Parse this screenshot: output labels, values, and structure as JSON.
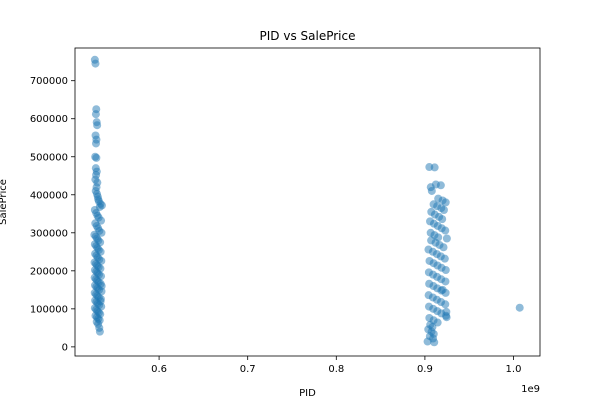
{
  "chart_data": {
    "type": "scatter",
    "title": "PID vs SalePrice",
    "xlabel": "PID",
    "ylabel": "SalePrice",
    "x_offset_label": "1e9",
    "xlim": [
      0.5051,
      1.0299
    ],
    "ylim": [
      -24000,
      786000
    ],
    "xticks": [
      0.6,
      0.7,
      0.8,
      0.9,
      1.0
    ],
    "xtick_labels": [
      "0.6",
      "0.7",
      "0.8",
      "0.9",
      "1.0"
    ],
    "yticks": [
      0,
      100000,
      200000,
      300000,
      400000,
      500000,
      600000,
      700000
    ],
    "ytick_labels": [
      "0",
      "100000",
      "200000",
      "300000",
      "400000",
      "500000",
      "600000",
      "700000"
    ],
    "marker_color": "#1f77b4",
    "marker_alpha": 0.5,
    "grid": false,
    "legend": "none",
    "points": [
      [
        0.5275,
        755000
      ],
      [
        0.5282,
        745000
      ],
      [
        0.5291,
        625000
      ],
      [
        0.5287,
        612000
      ],
      [
        0.5296,
        591000
      ],
      [
        0.5301,
        583000
      ],
      [
        0.5283,
        556000
      ],
      [
        0.5293,
        545000
      ],
      [
        0.5288,
        535000
      ],
      [
        0.5279,
        500000
      ],
      [
        0.5292,
        497000
      ],
      [
        0.5286,
        470000
      ],
      [
        0.5297,
        461000
      ],
      [
        0.5289,
        452000
      ],
      [
        0.5281,
        440000
      ],
      [
        0.5303,
        432000
      ],
      [
        0.5294,
        420000
      ],
      [
        0.5285,
        410000
      ],
      [
        0.5299,
        402000
      ],
      [
        0.5308,
        395000
      ],
      [
        0.5313,
        388000
      ],
      [
        0.5321,
        383000
      ],
      [
        0.5339,
        376000
      ],
      [
        0.5355,
        372000
      ],
      [
        0.5331,
        368000
      ],
      [
        0.5275,
        360000
      ],
      [
        0.529,
        352000
      ],
      [
        0.5305,
        345000
      ],
      [
        0.5318,
        340000
      ],
      [
        0.5345,
        332000
      ],
      [
        0.528,
        325000
      ],
      [
        0.5296,
        318000
      ],
      [
        0.5312,
        312000
      ],
      [
        0.5326,
        305000
      ],
      [
        0.535,
        300000
      ],
      [
        0.527,
        295000
      ],
      [
        0.5285,
        290000
      ],
      [
        0.53,
        285000
      ],
      [
        0.5315,
        280000
      ],
      [
        0.5335,
        275000
      ],
      [
        0.5275,
        270000
      ],
      [
        0.529,
        265000
      ],
      [
        0.5305,
        260000
      ],
      [
        0.532,
        255000
      ],
      [
        0.534,
        250000
      ],
      [
        0.5278,
        245000
      ],
      [
        0.5293,
        240000
      ],
      [
        0.5308,
        235000
      ],
      [
        0.5325,
        230000
      ],
      [
        0.5348,
        226000
      ],
      [
        0.5272,
        222000
      ],
      [
        0.5287,
        218000
      ],
      [
        0.5302,
        214000
      ],
      [
        0.5318,
        210000
      ],
      [
        0.5338,
        206000
      ],
      [
        0.5276,
        202000
      ],
      [
        0.5291,
        198000
      ],
      [
        0.5306,
        194000
      ],
      [
        0.5322,
        190000
      ],
      [
        0.5345,
        186000
      ],
      [
        0.5273,
        182000
      ],
      [
        0.5288,
        178000
      ],
      [
        0.5303,
        174000
      ],
      [
        0.5319,
        170000
      ],
      [
        0.5341,
        166000
      ],
      [
        0.5277,
        162000
      ],
      [
        0.5292,
        158000
      ],
      [
        0.5307,
        154000
      ],
      [
        0.5323,
        150000
      ],
      [
        0.535,
        146000
      ],
      [
        0.5274,
        142000
      ],
      [
        0.5289,
        138000
      ],
      [
        0.5304,
        134000
      ],
      [
        0.532,
        130000
      ],
      [
        0.5343,
        126000
      ],
      [
        0.5278,
        122000
      ],
      [
        0.5293,
        118000
      ],
      [
        0.5308,
        114000
      ],
      [
        0.5324,
        110000
      ],
      [
        0.5347,
        106000
      ],
      [
        0.5275,
        102000
      ],
      [
        0.529,
        98000
      ],
      [
        0.5305,
        94000
      ],
      [
        0.5321,
        90000
      ],
      [
        0.5336,
        86000
      ],
      [
        0.5282,
        82000
      ],
      [
        0.5298,
        78000
      ],
      [
        0.5314,
        74000
      ],
      [
        0.533,
        70000
      ],
      [
        0.5312,
        60000
      ],
      [
        0.5325,
        50000
      ],
      [
        0.5332,
        40000
      ],
      [
        0.5296,
        66000
      ],
      [
        0.534,
        120000
      ],
      [
        0.5352,
        160000
      ],
      [
        0.905,
        473000
      ],
      [
        0.911,
        472000
      ],
      [
        0.9124,
        427000
      ],
      [
        0.9066,
        420000
      ],
      [
        0.9078,
        410000
      ],
      [
        0.918,
        425000
      ],
      [
        0.915,
        390000
      ],
      [
        0.92,
        385000
      ],
      [
        0.9235,
        380000
      ],
      [
        0.9098,
        375000
      ],
      [
        0.9138,
        370000
      ],
      [
        0.9185,
        365000
      ],
      [
        0.9215,
        360000
      ],
      [
        0.9072,
        355000
      ],
      [
        0.9112,
        348000
      ],
      [
        0.916,
        342000
      ],
      [
        0.9195,
        336000
      ],
      [
        0.9058,
        330000
      ],
      [
        0.9102,
        324000
      ],
      [
        0.9145,
        318000
      ],
      [
        0.919,
        312000
      ],
      [
        0.923,
        306000
      ],
      [
        0.9065,
        300000
      ],
      [
        0.9108,
        294000
      ],
      [
        0.915,
        288000
      ],
      [
        0.9248,
        285000
      ],
      [
        0.907,
        280000
      ],
      [
        0.912,
        274000
      ],
      [
        0.9165,
        268000
      ],
      [
        0.921,
        262000
      ],
      [
        0.904,
        256000
      ],
      [
        0.909,
        250000
      ],
      [
        0.9135,
        244000
      ],
      [
        0.918,
        238000
      ],
      [
        0.9225,
        232000
      ],
      [
        0.9052,
        226000
      ],
      [
        0.9098,
        220000
      ],
      [
        0.9142,
        214000
      ],
      [
        0.9188,
        208000
      ],
      [
        0.9236,
        202000
      ],
      [
        0.9045,
        196000
      ],
      [
        0.9092,
        190000
      ],
      [
        0.9138,
        184000
      ],
      [
        0.9184,
        178000
      ],
      [
        0.9232,
        172000
      ],
      [
        0.9048,
        166000
      ],
      [
        0.9096,
        160000
      ],
      [
        0.914,
        154000
      ],
      [
        0.9186,
        148000
      ],
      [
        0.9234,
        142000
      ],
      [
        0.9042,
        136000
      ],
      [
        0.909,
        130000
      ],
      [
        0.9136,
        124000
      ],
      [
        0.9182,
        118000
      ],
      [
        0.923,
        112000
      ],
      [
        0.9046,
        106000
      ],
      [
        0.9094,
        100000
      ],
      [
        0.914,
        94000
      ],
      [
        0.9186,
        88000
      ],
      [
        0.9238,
        82000
      ],
      [
        0.905,
        76000
      ],
      [
        0.9098,
        70000
      ],
      [
        0.9144,
        64000
      ],
      [
        0.906,
        58000
      ],
      [
        0.9085,
        52000
      ],
      [
        0.9038,
        46000
      ],
      [
        0.9075,
        40000
      ],
      [
        0.91,
        34000
      ],
      [
        0.9056,
        28000
      ],
      [
        0.9092,
        22000
      ],
      [
        0.903,
        14000
      ],
      [
        0.9105,
        12000
      ],
      [
        0.9242,
        92000
      ],
      [
        0.9245,
        78000
      ],
      [
        0.92,
        150000
      ],
      [
        1.007,
        103000
      ]
    ]
  }
}
